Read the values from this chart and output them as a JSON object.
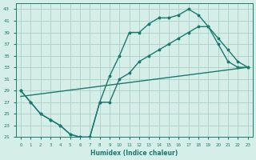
{
  "xlabel": "Humidex (Indice chaleur)",
  "ylabel": "",
  "background_color": "#d6eee8",
  "grid_color": "#b0d4cc",
  "line_color": "#1a7a6e",
  "xlim": [
    -0.5,
    23.5
  ],
  "ylim": [
    21,
    44
  ],
  "yticks": [
    21,
    23,
    25,
    27,
    29,
    31,
    33,
    35,
    37,
    39,
    41,
    43
  ],
  "xticks": [
    0,
    1,
    2,
    3,
    4,
    5,
    6,
    7,
    8,
    9,
    10,
    11,
    12,
    13,
    14,
    15,
    16,
    17,
    18,
    19,
    20,
    21,
    22,
    23
  ],
  "line1_x": [
    0,
    1,
    2,
    3,
    4,
    5,
    6,
    7,
    8,
    9,
    10,
    11,
    12,
    13,
    14,
    15,
    16,
    17,
    18,
    19,
    20,
    21,
    22,
    23
  ],
  "line1_y": [
    29,
    27,
    25,
    24,
    23,
    21.5,
    21,
    21,
    27,
    31.5,
    35,
    39,
    39,
    40.5,
    41.5,
    41.5,
    42,
    43,
    42,
    40,
    37,
    34,
    33,
    33
  ],
  "line2_x": [
    0,
    1,
    2,
    3,
    4,
    5,
    6,
    7,
    8,
    9,
    10,
    11,
    12,
    13,
    14,
    15,
    16,
    17,
    18,
    19,
    20,
    21,
    22,
    23
  ],
  "line2_y": [
    29,
    27,
    25,
    24,
    23,
    21.5,
    21,
    21,
    27,
    27,
    31,
    32,
    34,
    35,
    36,
    37,
    38,
    39,
    40,
    40,
    38,
    36,
    34,
    33
  ],
  "line3_x": [
    0,
    23
  ],
  "line3_y": [
    28,
    33
  ]
}
